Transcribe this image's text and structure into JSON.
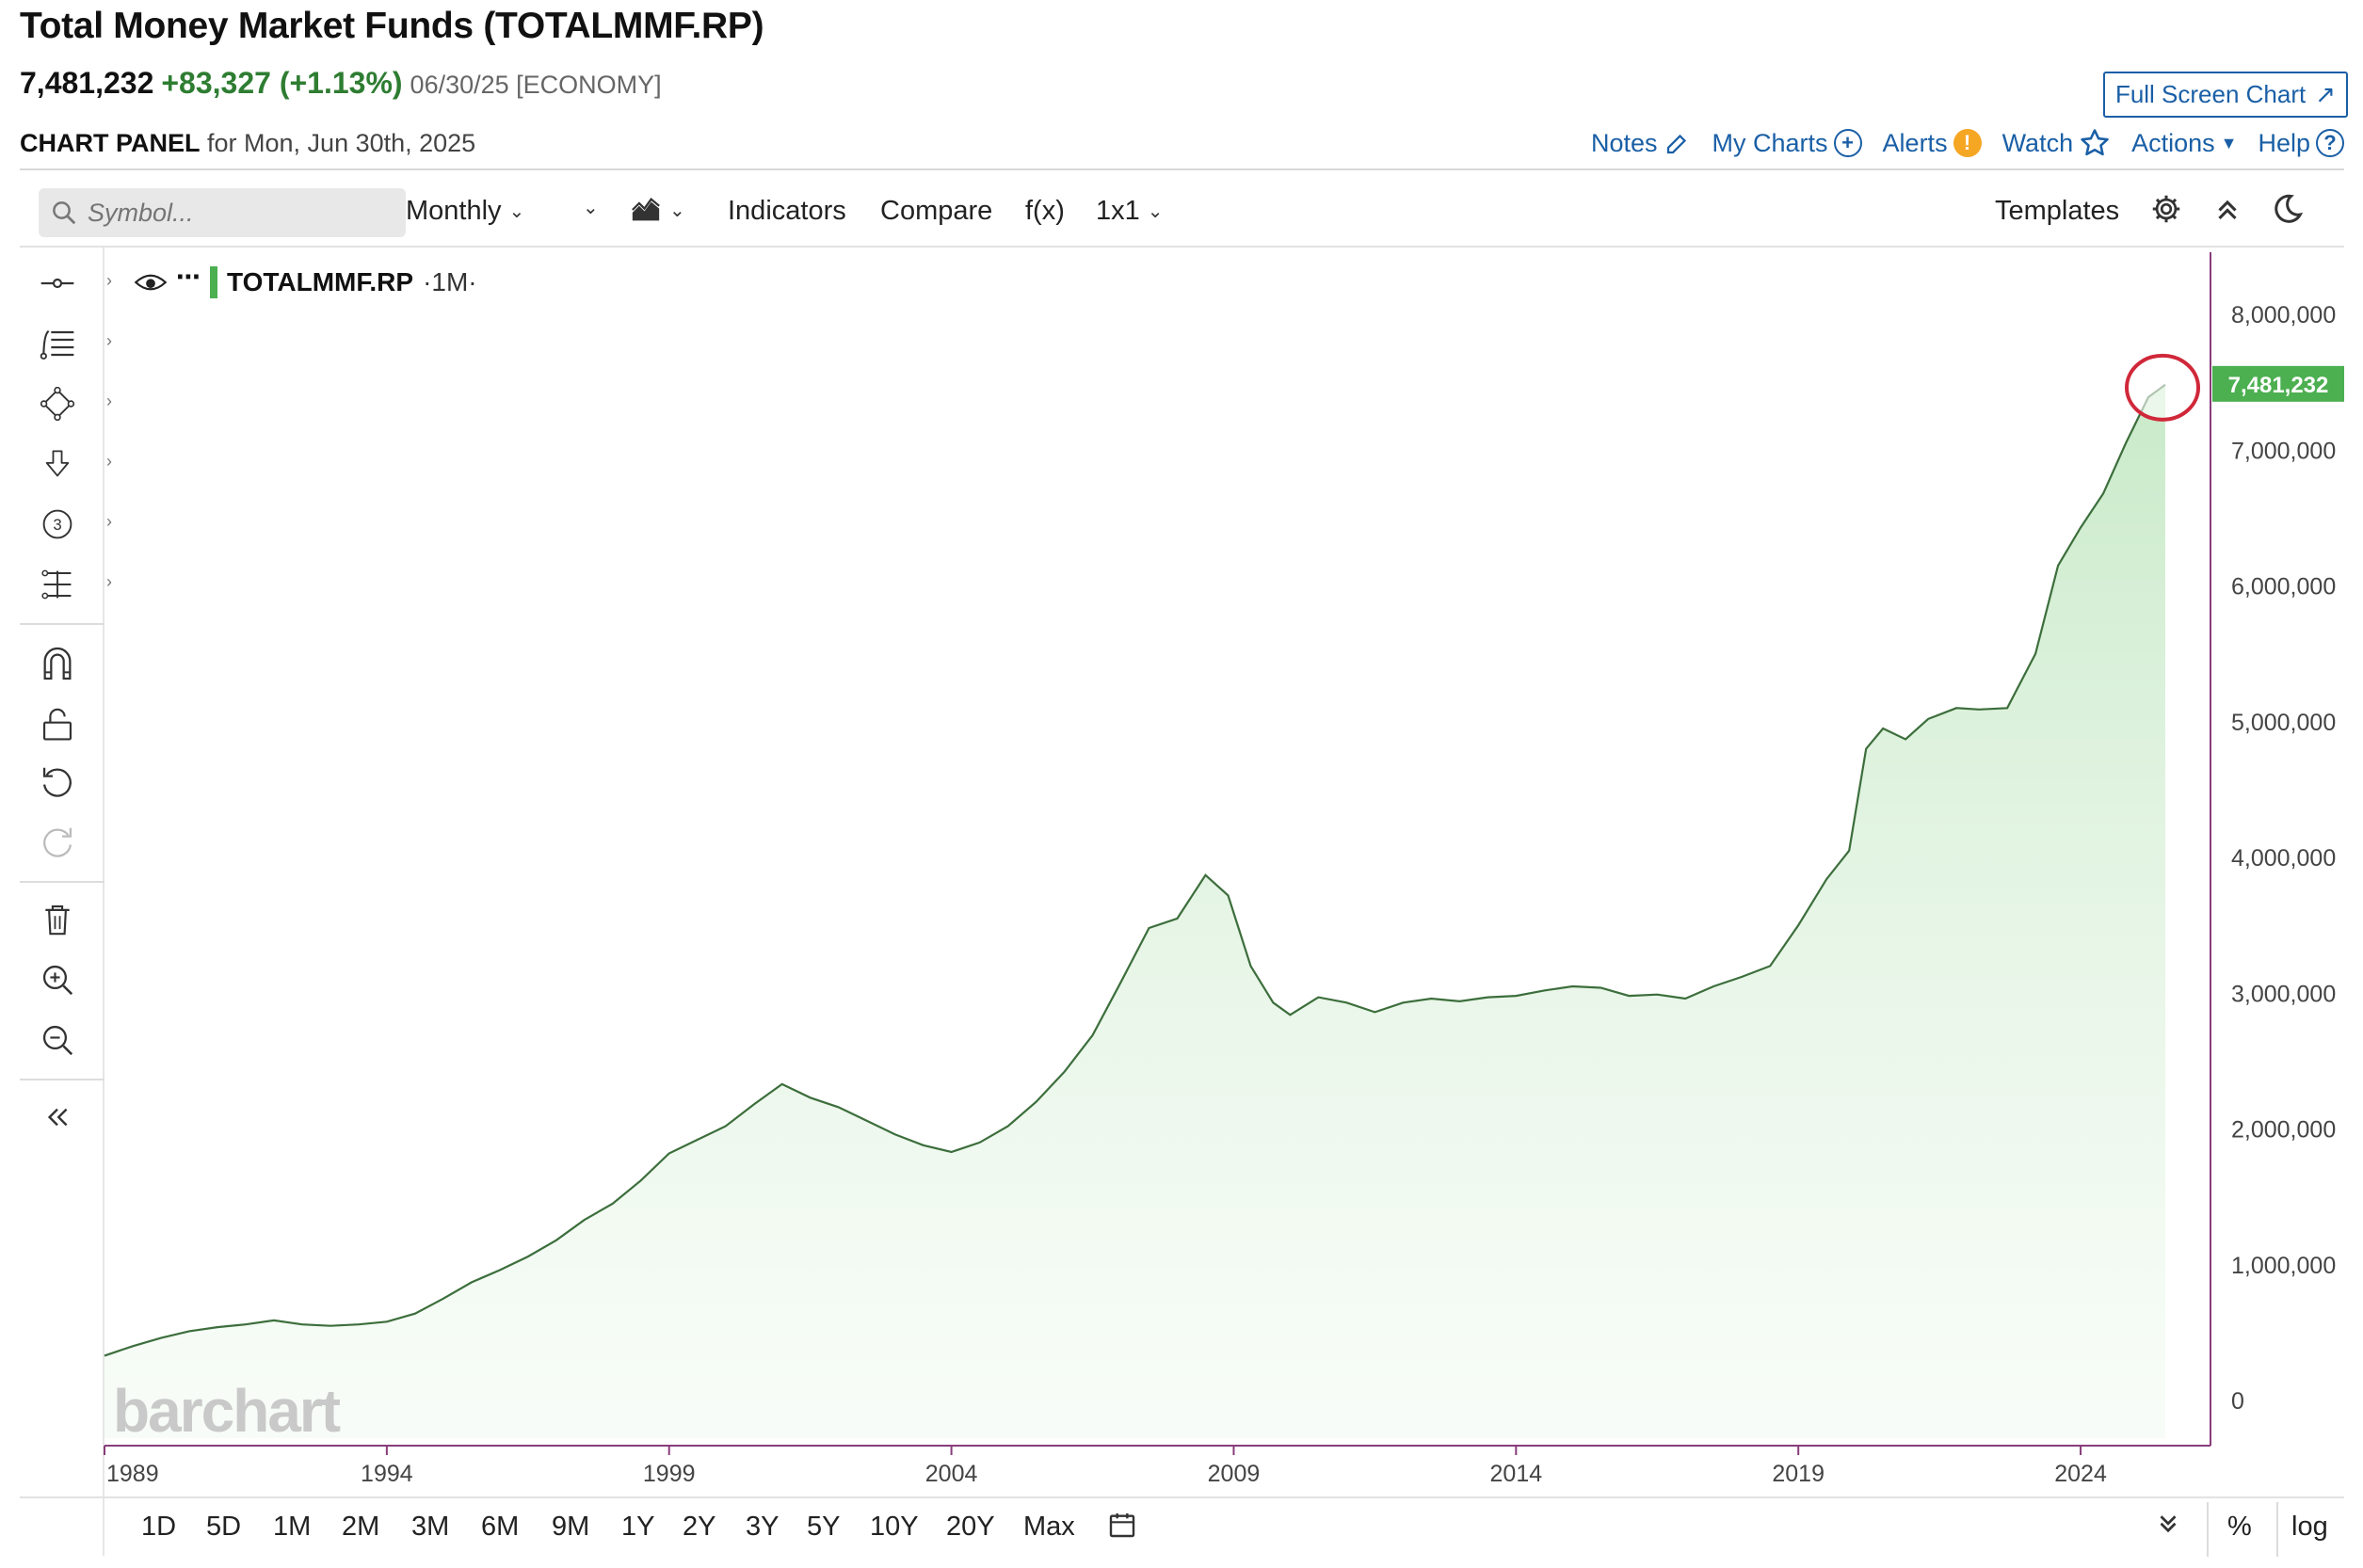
{
  "header": {
    "title": "Total Money Market Funds (TOTALMMF.RP)",
    "last": "7,481,232",
    "change": "+83,327 (+1.13%)",
    "meta": "06/30/25 [ECONOMY]",
    "fullscreen_label": "Full Screen Chart",
    "panel_label": "CHART PANEL",
    "panel_date": "for Mon, Jun 30th, 2025"
  },
  "toplinks": {
    "notes": "Notes",
    "my_charts": "My Charts",
    "alerts": "Alerts",
    "watch": "Watch",
    "actions": "Actions",
    "help": "Help"
  },
  "toolbar": {
    "search_placeholder": "Symbol...",
    "interval": "Monthly",
    "indicators": "Indicators",
    "compare": "Compare",
    "fx": "f(x)",
    "layout": "1x1",
    "templates": "Templates"
  },
  "legend": {
    "symbol": "TOTALMMF.RP",
    "timeframe": "·1M·"
  },
  "logo": "barchart",
  "bottom": {
    "ranges": [
      "1D",
      "5D",
      "1M",
      "2M",
      "3M",
      "6M",
      "9M",
      "1Y",
      "2Y",
      "3Y",
      "5Y",
      "10Y",
      "20Y",
      "Max"
    ],
    "percent": "%",
    "log": "log"
  },
  "chart_data": {
    "type": "area",
    "title": "",
    "xlabel": "",
    "ylabel": "",
    "x_ticks": [
      "1989",
      "1994",
      "1999",
      "2004",
      "2009",
      "2014",
      "2019",
      "2024"
    ],
    "y_ticks": [
      "0",
      "1,000,000",
      "2,000,000",
      "3,000,000",
      "4,000,000",
      "5,000,000",
      "6,000,000",
      "7,000,000",
      "8,000,000"
    ],
    "ylim": [
      0,
      8000000
    ],
    "xlim": [
      1989.0,
      2026.3
    ],
    "last_value_label": "7,481,232",
    "line_color": "#3c6e3c",
    "fill_color": "#d6f0d6",
    "highlight_color": "#d0283a",
    "x": [
      1989.0,
      1989.5,
      1990.0,
      1990.5,
      1991.0,
      1991.5,
      1992.0,
      1992.5,
      1993.0,
      1993.5,
      1994.0,
      1994.5,
      1995.0,
      1995.5,
      1996.0,
      1996.5,
      1997.0,
      1997.5,
      1998.0,
      1998.5,
      1999.0,
      1999.5,
      2000.0,
      2000.5,
      2001.0,
      2001.5,
      2002.0,
      2002.5,
      2003.0,
      2003.5,
      2004.0,
      2004.5,
      2005.0,
      2005.5,
      2006.0,
      2006.5,
      2007.0,
      2007.5,
      2008.0,
      2008.5,
      2008.9,
      2009.3,
      2009.7,
      2010.0,
      2010.5,
      2011.0,
      2011.5,
      2012.0,
      2012.5,
      2013.0,
      2013.5,
      2014.0,
      2014.5,
      2015.0,
      2015.5,
      2016.0,
      2016.5,
      2017.0,
      2017.5,
      2018.0,
      2018.5,
      2019.0,
      2019.5,
      2019.9,
      2020.2,
      2020.5,
      2020.9,
      2021.3,
      2021.8,
      2022.2,
      2022.7,
      2023.2,
      2023.6,
      2024.0,
      2024.4,
      2024.8,
      2025.2,
      2025.5
    ],
    "values": [
      330000,
      400000,
      460000,
      510000,
      540000,
      560000,
      590000,
      560000,
      550000,
      560000,
      580000,
      640000,
      750000,
      870000,
      960000,
      1060000,
      1180000,
      1330000,
      1450000,
      1620000,
      1820000,
      1920000,
      2020000,
      2180000,
      2330000,
      2230000,
      2160000,
      2060000,
      1960000,
      1880000,
      1830000,
      1900000,
      2020000,
      2200000,
      2420000,
      2690000,
      3080000,
      3480000,
      3550000,
      3870000,
      3720000,
      3200000,
      2930000,
      2840000,
      2970000,
      2930000,
      2860000,
      2930000,
      2960000,
      2940000,
      2970000,
      2980000,
      3020000,
      3050000,
      3040000,
      2980000,
      2990000,
      2960000,
      3050000,
      3120000,
      3200000,
      3500000,
      3840000,
      4050000,
      4800000,
      4950000,
      4870000,
      5020000,
      5100000,
      5090000,
      5100000,
      5500000,
      6150000,
      6430000,
      6680000,
      7050000,
      7390000,
      7481232
    ]
  }
}
